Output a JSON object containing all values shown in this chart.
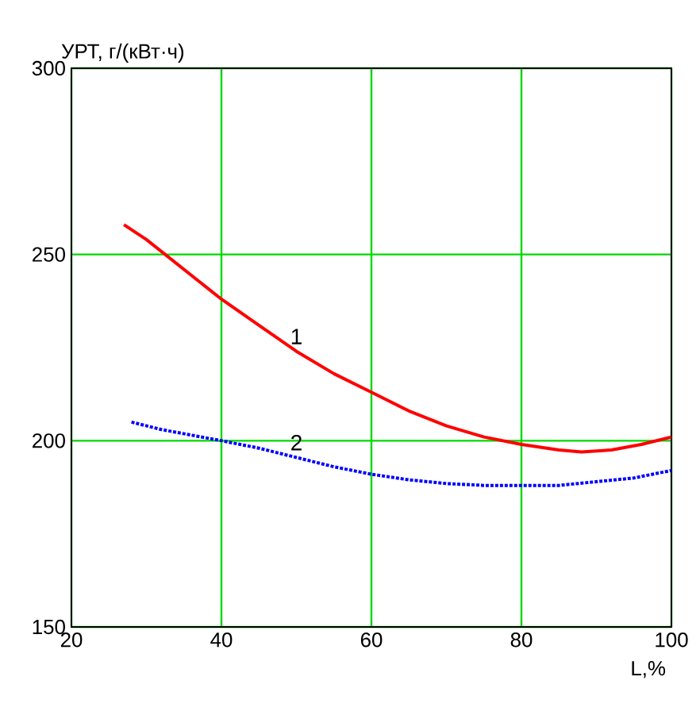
{
  "chart_data": {
    "type": "line",
    "xlabel": "L,%",
    "ylabel": "УРТ, г/(кВт·ч)",
    "xlim": [
      20,
      100
    ],
    "ylim": [
      150,
      300
    ],
    "xticks": [
      20,
      40,
      60,
      80,
      100
    ],
    "yticks": [
      150,
      200,
      250,
      300
    ],
    "grid": true,
    "marker": "none",
    "annotations": [
      {
        "text": "1",
        "x": 50,
        "y": 224
      },
      {
        "text": "2",
        "x": 50,
        "y": 195.5
      }
    ],
    "series": [
      {
        "color": "#ff0000",
        "line_style": "solid",
        "x": [
          27,
          30,
          35,
          40,
          45,
          50,
          55,
          60,
          65,
          70,
          75,
          80,
          85,
          88,
          92,
          96,
          100
        ],
        "values": [
          258,
          254,
          246,
          238,
          231,
          224,
          218,
          213,
          208,
          204,
          201,
          199,
          197.5,
          197,
          197.5,
          199,
          201
        ]
      },
      {
        "color": "#0000ff",
        "line_style": "dotted",
        "x": [
          28,
          32,
          36,
          40,
          45,
          50,
          55,
          60,
          65,
          70,
          75,
          80,
          85,
          90,
          95,
          100
        ],
        "values": [
          205,
          203,
          201.5,
          200,
          198,
          195.5,
          193,
          191,
          189.5,
          188.5,
          188,
          188,
          188,
          189,
          190,
          192
        ]
      }
    ]
  }
}
